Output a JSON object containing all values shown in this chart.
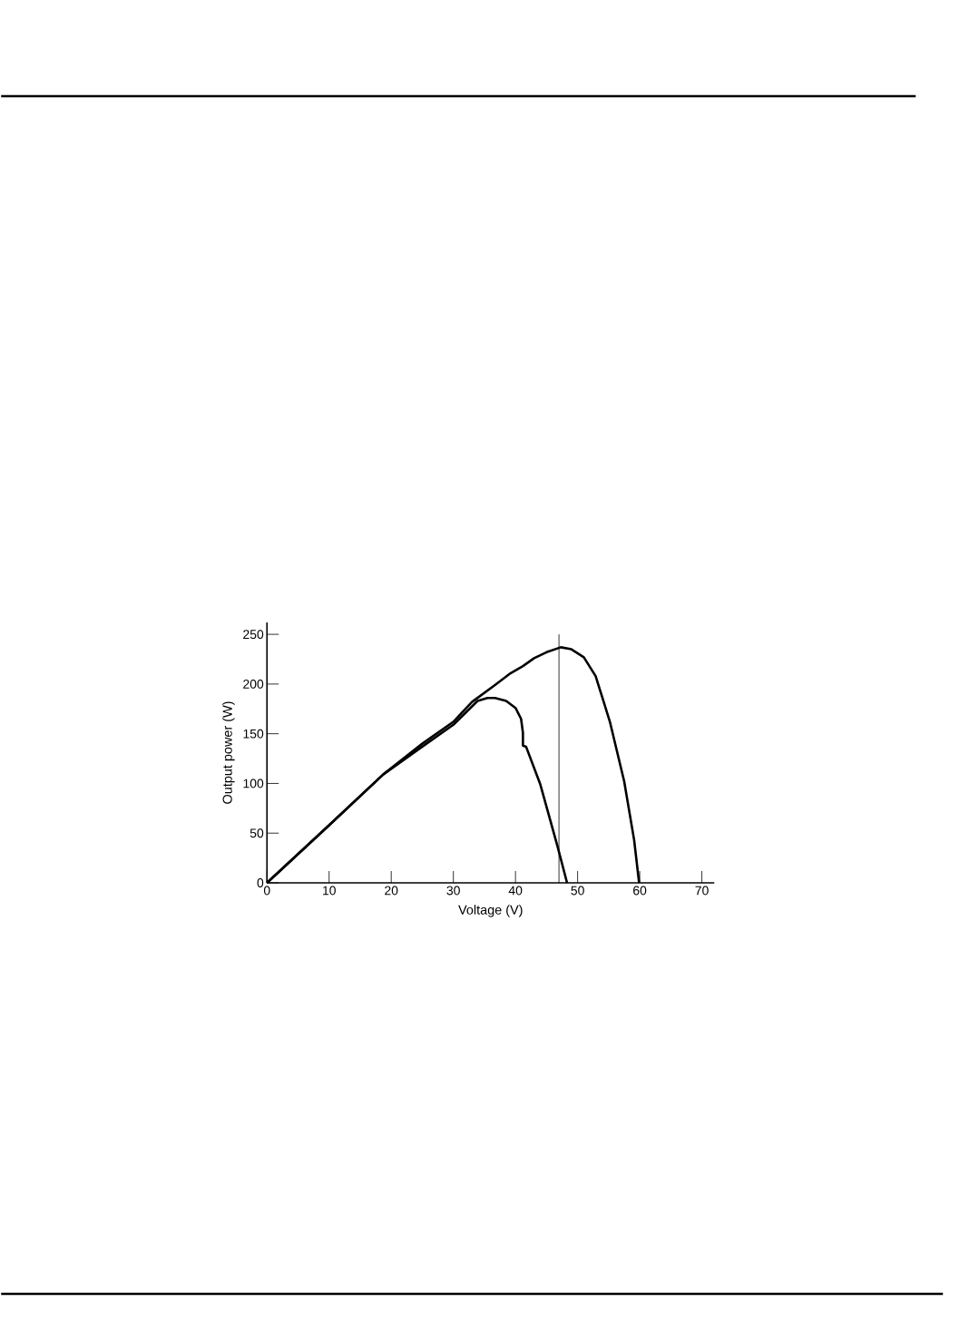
{
  "chart_data": {
    "type": "line",
    "xlabel": "Voltage (V)",
    "ylabel": "Output power (W)",
    "xlim": [
      0,
      72
    ],
    "ylim": [
      0,
      262
    ],
    "xticks": [
      0,
      10,
      20,
      30,
      40,
      50,
      60,
      70
    ],
    "yticks": [
      0,
      50,
      100,
      150,
      200,
      250
    ],
    "grid": false,
    "marker": "none",
    "line_style": "solid",
    "ref_lines": [
      {
        "axis": "x",
        "value": 47,
        "color": "#000000"
      }
    ],
    "series": [
      {
        "color": "#000000",
        "x": [
          0,
          10,
          18.7,
          25,
          30,
          33,
          36.7,
          39,
          41.2,
          43,
          45,
          47.3,
          49,
          51,
          52.9,
          54,
          55.2,
          57.5,
          59.1,
          59.9
        ],
        "values": [
          0,
          58,
          109,
          140,
          162,
          182,
          199,
          210,
          218,
          226,
          232,
          237,
          235,
          227,
          208,
          186,
          162,
          102,
          43,
          0
        ]
      },
      {
        "color": "#000000",
        "x": [
          0,
          10,
          18.7,
          25,
          30,
          33.9,
          35.5,
          36.7,
          38.5,
          40,
          40.9,
          41.2,
          41.2,
          41.7,
          44,
          46.8,
          48.3
        ],
        "values": [
          0,
          58,
          109,
          137,
          159,
          183,
          186,
          186,
          183,
          176,
          165,
          151,
          138,
          137,
          99,
          36,
          0
        ]
      }
    ]
  }
}
